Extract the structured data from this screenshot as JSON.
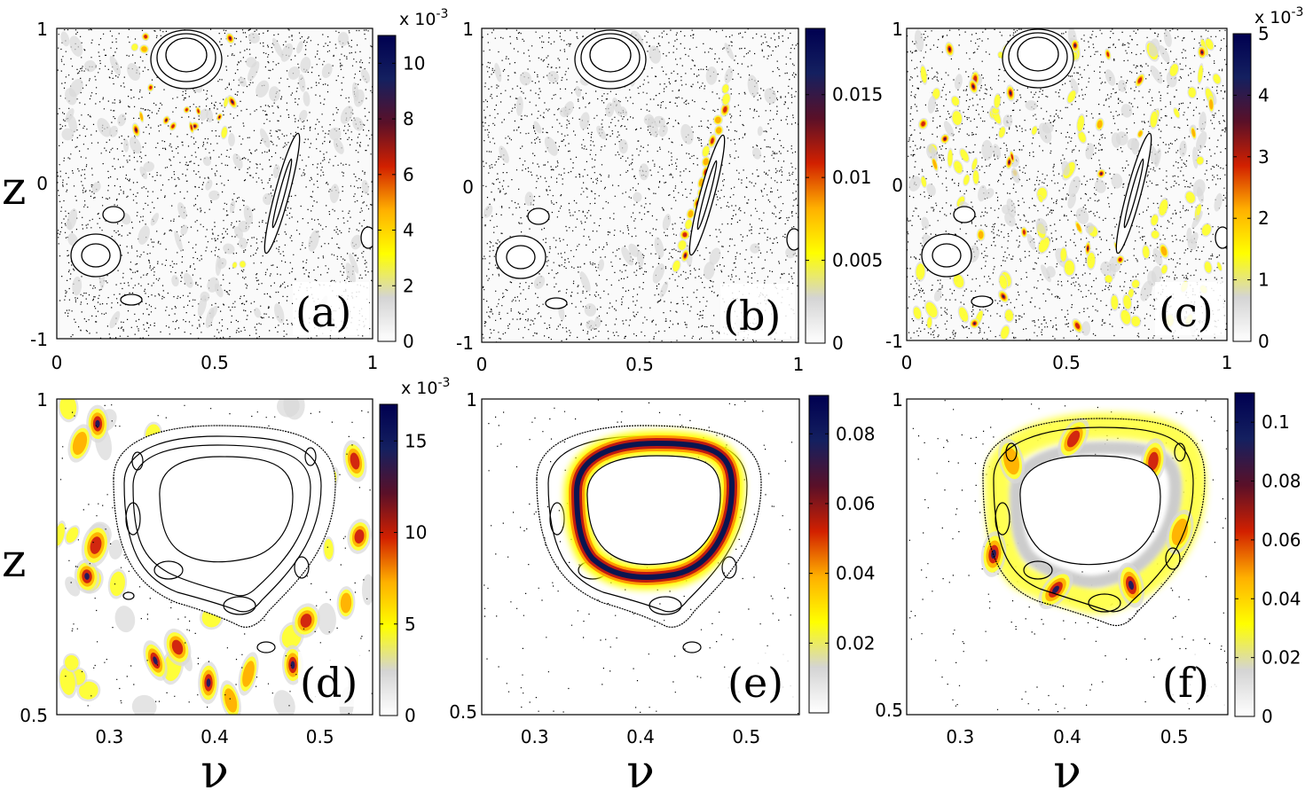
{
  "colors": {
    "colormap": [
      "#ffffff",
      "#d4d4d4",
      "#ffff00",
      "#ffb000",
      "#d22000",
      "#5a1028",
      "#142060",
      "#000050"
    ],
    "dots": "#000000",
    "frame": "#000000"
  },
  "labels": {
    "y_top": "z",
    "y_bottom": "z",
    "x_bottom_left": "ν",
    "x_bottom_mid": "ν",
    "x_bottom_right": "ν"
  },
  "chart_data": [
    {
      "id": "a",
      "type": "heatmap",
      "label": "(a)",
      "xlim": [
        0,
        1
      ],
      "ylim": [
        -1,
        1
      ],
      "xticks": [
        "0",
        "0.5",
        "1"
      ],
      "yticks": [
        "-1",
        "0",
        "1"
      ],
      "colorbar": {
        "range": [
          0,
          11
        ],
        "ticks": [
          "0",
          "2",
          "4",
          "6",
          "8",
          "10"
        ],
        "tick_values": [
          0,
          2,
          4,
          6,
          8,
          10
        ],
        "multiplier": "x 10",
        "exponent": "-3"
      }
    },
    {
      "id": "b",
      "type": "heatmap",
      "label": "(b)",
      "xlim": [
        0,
        1
      ],
      "ylim": [
        -1,
        1
      ],
      "xticks": [
        "0",
        "0.5",
        "1"
      ],
      "yticks": [
        "-1",
        "0",
        "1"
      ],
      "colorbar": {
        "range": [
          0,
          0.019
        ],
        "ticks": [
          "0",
          "0.005",
          "0.01",
          "0.015"
        ],
        "tick_values": [
          0,
          0.005,
          0.01,
          0.015
        ],
        "multiplier": "",
        "exponent": ""
      }
    },
    {
      "id": "c",
      "type": "heatmap",
      "label": "(c)",
      "xlim": [
        0,
        1
      ],
      "ylim": [
        -1,
        1
      ],
      "xticks": [
        "0",
        "0.5",
        "1"
      ],
      "yticks": [
        "-1",
        "0",
        "1"
      ],
      "colorbar": {
        "range": [
          0,
          5
        ],
        "ticks": [
          "0",
          "1",
          "2",
          "3",
          "4",
          "5"
        ],
        "tick_values": [
          0,
          1,
          2,
          3,
          4,
          5
        ],
        "multiplier": "x 10",
        "exponent": "-3"
      }
    },
    {
      "id": "d",
      "type": "heatmap",
      "label": "(d)",
      "xlim": [
        0.25,
        0.55
      ],
      "ylim": [
        0.5,
        1
      ],
      "xticks": [
        "0.3",
        "0.4",
        "0.5"
      ],
      "xtick_values": [
        0.3,
        0.4,
        0.5
      ],
      "yticks": [
        "0.5",
        "1"
      ],
      "colorbar": {
        "range": [
          0,
          17
        ],
        "ticks": [
          "0",
          "5",
          "10",
          "15"
        ],
        "tick_values": [
          0,
          5,
          10,
          15
        ],
        "multiplier": "x 10",
        "exponent": "-3"
      }
    },
    {
      "id": "e",
      "type": "heatmap",
      "label": "(e)",
      "xlim": [
        0.25,
        0.55
      ],
      "ylim": [
        0.5,
        1
      ],
      "xticks": [
        "0.3",
        "0.4",
        "0.5"
      ],
      "xtick_values": [
        0.3,
        0.4,
        0.5
      ],
      "yticks": [
        "0.5",
        "1"
      ],
      "colorbar": {
        "range": [
          0,
          0.091
        ],
        "ticks": [
          "0.02",
          "0.04",
          "0.06",
          "0.08"
        ],
        "tick_values": [
          0.02,
          0.04,
          0.06,
          0.08
        ],
        "multiplier": "",
        "exponent": ""
      }
    },
    {
      "id": "f",
      "type": "heatmap",
      "label": "(f)",
      "xlim": [
        0.25,
        0.55
      ],
      "ylim": [
        0.5,
        1
      ],
      "xticks": [
        "0.3",
        "0.4",
        "0.5"
      ],
      "xtick_values": [
        0.3,
        0.4,
        0.5
      ],
      "yticks": [
        "0.5",
        "1"
      ],
      "colorbar": {
        "range": [
          0,
          0.11
        ],
        "ticks": [
          "0",
          "0.02",
          "0.04",
          "0.06",
          "0.08",
          "0.1"
        ],
        "tick_values": [
          0,
          0.02,
          0.04,
          0.06,
          0.08,
          0.1
        ],
        "multiplier": "",
        "exponent": ""
      }
    }
  ]
}
